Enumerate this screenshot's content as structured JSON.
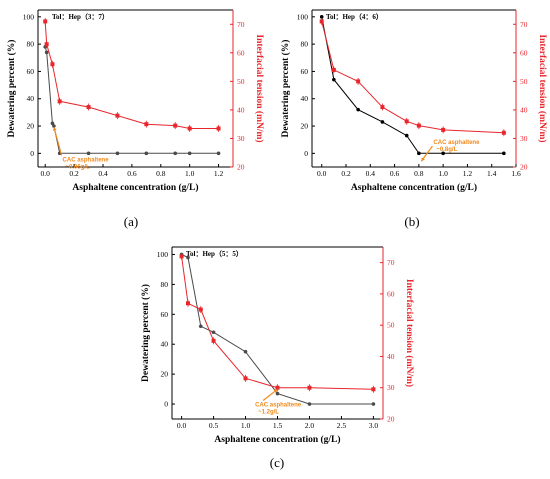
{
  "colors": {
    "left": "#4a4a4a",
    "right": "#e8262c",
    "annotation": "#f28a1e"
  },
  "chart_data": [
    {
      "type": "line",
      "panel_label": "(a)",
      "title": "Tol：Hep（3：7）",
      "xlabel": "Asphaltene concentration (g/L)",
      "ylabel": "Dewatering percent (%)",
      "ylabel_right": "Interfacial tension (mN/m)",
      "xlim": [
        -0.05,
        1.3
      ],
      "ylim": [
        -10,
        105
      ],
      "ylim_right": [
        20,
        75
      ],
      "x_ticks": [
        0.0,
        0.2,
        0.4,
        0.6,
        0.8,
        1.0,
        1.2
      ],
      "y_ticks": [
        0,
        20,
        40,
        60,
        80,
        100
      ],
      "y_ticks_right": [
        20,
        30,
        40,
        50,
        60,
        70
      ],
      "annotation": {
        "lines": [
          "CAC asphaltene",
          "~0.06g/L"
        ],
        "x": 0.12,
        "y": 22,
        "arrow_to": [
          0.06,
          34
        ]
      },
      "series": [
        {
          "axis": "left",
          "color": "#4a4a4a",
          "x": [
            0.0,
            0.01,
            0.05,
            0.06,
            0.1,
            0.3,
            0.5,
            0.7,
            0.9,
            1.0,
            1.2
          ],
          "y": [
            78,
            74,
            22,
            20,
            0,
            0,
            0,
            0,
            0,
            0,
            0
          ]
        },
        {
          "axis": "right",
          "color": "#e8262c",
          "x": [
            0.0,
            0.01,
            0.05,
            0.1,
            0.3,
            0.5,
            0.7,
            0.9,
            1.0,
            1.2
          ],
          "y": [
            71,
            63,
            56,
            43,
            41,
            38,
            35,
            34.5,
            33.5,
            33.5
          ]
        }
      ]
    },
    {
      "type": "line",
      "panel_label": "(b)",
      "title": "Tol：Hep（4：6）",
      "xlabel": "Asphaltene concentration (g/L)",
      "ylabel": "Dewatering percent (%)",
      "ylabel_right": "Interfacial tension (mN/m)",
      "xlim": [
        -0.08,
        1.6
      ],
      "ylim": [
        -10,
        105
      ],
      "ylim_right": [
        20,
        75
      ],
      "x_ticks": [
        0.0,
        0.2,
        0.4,
        0.6,
        0.8,
        1.0,
        1.2,
        1.4,
        1.6
      ],
      "y_ticks": [
        0,
        20,
        40,
        60,
        80,
        100
      ],
      "y_ticks_right": [
        20,
        30,
        40,
        50,
        60,
        70
      ],
      "annotation": {
        "lines": [
          "CAC asphaltene",
          "~0.8g/L"
        ],
        "x": 0.92,
        "y": 28,
        "arrow_to": [
          0.82,
          22
        ]
      },
      "series": [
        {
          "axis": "left",
          "color": "#000000",
          "x": [
            0.0,
            0.1,
            0.3,
            0.5,
            0.7,
            0.8,
            1.0,
            1.5
          ],
          "y": [
            100,
            54,
            32,
            23,
            13,
            0,
            0,
            0
          ]
        },
        {
          "axis": "right",
          "color": "#e8262c",
          "x": [
            0.0,
            0.1,
            0.3,
            0.5,
            0.7,
            0.8,
            1.0,
            1.5
          ],
          "y": [
            71,
            54,
            50,
            41,
            36,
            34.5,
            33,
            32
          ]
        }
      ]
    },
    {
      "type": "line",
      "panel_label": "(c)",
      "title": "Tol：Hep（5：5）",
      "xlabel": "Asphaltene concentration (g/L)",
      "ylabel": "Dewatering percent (%)",
      "ylabel_right": "Interfacial tension (mN/m)",
      "xlim": [
        -0.15,
        3.15
      ],
      "ylim": [
        -10,
        105
      ],
      "ylim_right": [
        20,
        75
      ],
      "x_ticks": [
        0.0,
        0.5,
        1.0,
        1.5,
        2.0,
        2.5,
        3.0
      ],
      "y_ticks": [
        0,
        20,
        40,
        60,
        80,
        100
      ],
      "y_ticks_right": [
        20,
        30,
        40,
        50,
        60,
        70
      ],
      "annotation": {
        "lines": [
          "CAC asphaltene",
          "~1.2g/L"
        ],
        "x": 1.15,
        "y": 24,
        "arrow_to": [
          1.5,
          29.5
        ]
      },
      "series": [
        {
          "axis": "left",
          "color": "#4a4a4a",
          "x": [
            0.0,
            0.1,
            0.3,
            0.5,
            1.0,
            1.5,
            2.0,
            3.0
          ],
          "y": [
            100,
            98,
            52,
            48,
            35,
            7,
            0,
            0
          ]
        },
        {
          "axis": "right",
          "color": "#e8262c",
          "x": [
            0.0,
            0.1,
            0.3,
            0.5,
            1.0,
            1.5,
            2.0,
            3.0
          ],
          "y": [
            72,
            57,
            55,
            45,
            33,
            30,
            30,
            29.5
          ]
        }
      ]
    }
  ]
}
